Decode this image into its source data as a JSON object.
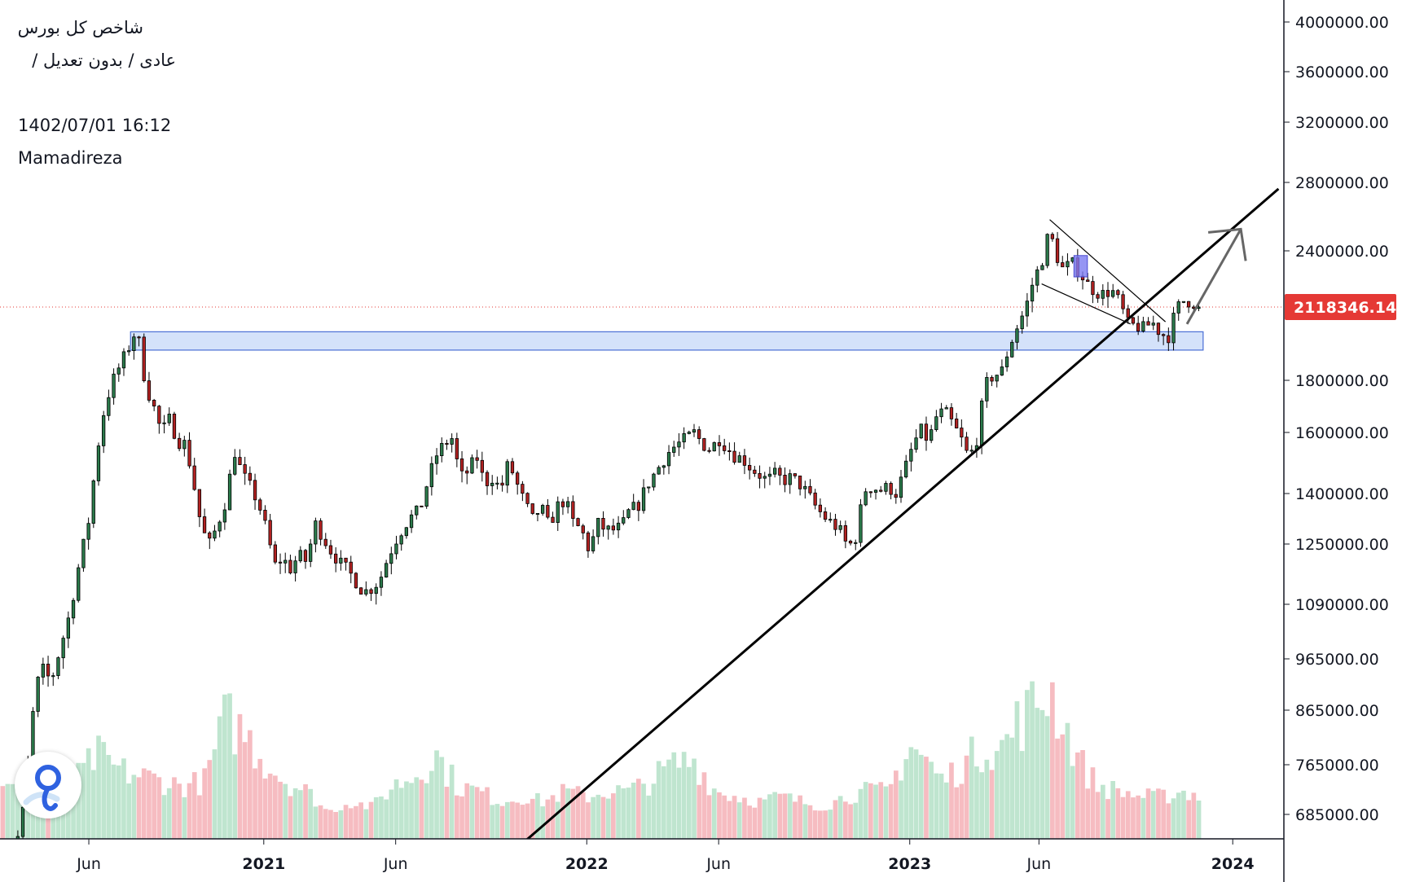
{
  "header": {
    "symbol_name": "شاخص کل بورس",
    "chart_mode": "عادی / بدون تعدیل /",
    "datetime": "1402/07/01 16:12",
    "author": "Mamadireza"
  },
  "colors": {
    "up": "#2b7a4b",
    "down": "#b22222",
    "vol_up": "#bfe5cf",
    "vol_down": "#f6bcc1",
    "zone_fill": "#c5d8f8",
    "zone_stroke": "#4a6fd6",
    "price_badge": "#e53935",
    "trend": "#000000"
  },
  "chart_data": {
    "type": "candlestick",
    "symbol": "شاخص کل بورس",
    "last_price": "2118346.14",
    "last_price_value": 2118346.14,
    "y_scale": "log",
    "ylim": [
      600000,
      4300000
    ],
    "y_ticks": [
      "4000000.00",
      "3600000.00",
      "3200000.00",
      "2800000.00",
      "2400000.00",
      "1800000.00",
      "1600000.00",
      "1400000.00",
      "1250000.00",
      "1090000.00",
      "965000.00",
      "865000.00",
      "765000.00",
      "685000.00"
    ],
    "y_tick_values": [
      4000000,
      3600000,
      3200000,
      2800000,
      2400000,
      1800000,
      1600000,
      1400000,
      1250000,
      1090000,
      965000,
      865000,
      765000,
      685000
    ],
    "x_ticks": [
      {
        "label": "Jun",
        "year": false,
        "t": 1.5
      },
      {
        "label": "2021",
        "year": true,
        "t": 8.0
      },
      {
        "label": "Jun",
        "year": false,
        "t": 12.9
      },
      {
        "label": "2022",
        "year": true,
        "t": 20.0
      },
      {
        "label": "Jun",
        "year": false,
        "t": 24.9
      },
      {
        "label": "2023",
        "year": true,
        "t": 32.0
      },
      {
        "label": "Jun",
        "year": false,
        "t": 36.8
      },
      {
        "label": "2024",
        "year": true,
        "t": 44.0
      }
    ],
    "t_range": [
      -1.8,
      45.9
    ],
    "anchors": [
      {
        "t": -1.7,
        "c": 560000
      },
      {
        "t": -1.3,
        "c": 620000
      },
      {
        "t": -0.9,
        "c": 700000
      },
      {
        "t": -0.6,
        "c": 850000
      },
      {
        "t": -0.3,
        "c": 950000
      },
      {
        "t": 0.1,
        "c": 920000
      },
      {
        "t": 0.4,
        "c": 980000
      },
      {
        "t": 0.8,
        "c": 1070000
      },
      {
        "t": 1.1,
        "c": 1180000
      },
      {
        "t": 1.5,
        "c": 1320000
      },
      {
        "t": 1.8,
        "c": 1530000
      },
      {
        "t": 2.1,
        "c": 1700000
      },
      {
        "t": 2.4,
        "c": 1800000
      },
      {
        "t": 2.7,
        "c": 1870000
      },
      {
        "t": 3.0,
        "c": 1940000
      },
      {
        "t": 3.2,
        "c": 2000000
      },
      {
        "t": 3.4,
        "c": 1950000
      },
      {
        "t": 3.6,
        "c": 1780000
      },
      {
        "t": 3.9,
        "c": 1700000
      },
      {
        "t": 4.2,
        "c": 1600000
      },
      {
        "t": 4.5,
        "c": 1650000
      },
      {
        "t": 4.8,
        "c": 1570000
      },
      {
        "t": 5.1,
        "c": 1560000
      },
      {
        "t": 5.4,
        "c": 1430000
      },
      {
        "t": 5.7,
        "c": 1290000
      },
      {
        "t": 6.0,
        "c": 1250000
      },
      {
        "t": 6.3,
        "c": 1310000
      },
      {
        "t": 6.6,
        "c": 1380000
      },
      {
        "t": 6.9,
        "c": 1540000
      },
      {
        "t": 7.2,
        "c": 1460000
      },
      {
        "t": 7.5,
        "c": 1420000
      },
      {
        "t": 7.8,
        "c": 1370000
      },
      {
        "t": 8.1,
        "c": 1290000
      },
      {
        "t": 8.4,
        "c": 1190000
      },
      {
        "t": 8.7,
        "c": 1210000
      },
      {
        "t": 9.0,
        "c": 1180000
      },
      {
        "t": 9.3,
        "c": 1220000
      },
      {
        "t": 9.6,
        "c": 1200000
      },
      {
        "t": 9.9,
        "c": 1310000
      },
      {
        "t": 10.2,
        "c": 1270000
      },
      {
        "t": 10.5,
        "c": 1230000
      },
      {
        "t": 10.8,
        "c": 1200000
      },
      {
        "t": 11.1,
        "c": 1180000
      },
      {
        "t": 11.4,
        "c": 1150000
      },
      {
        "t": 11.7,
        "c": 1120000
      },
      {
        "t": 12.0,
        "c": 1130000
      },
      {
        "t": 12.3,
        "c": 1150000
      },
      {
        "t": 12.6,
        "c": 1210000
      },
      {
        "t": 12.9,
        "c": 1260000
      },
      {
        "t": 13.2,
        "c": 1300000
      },
      {
        "t": 13.5,
        "c": 1330000
      },
      {
        "t": 13.8,
        "c": 1350000
      },
      {
        "t": 14.1,
        "c": 1440000
      },
      {
        "t": 14.4,
        "c": 1520000
      },
      {
        "t": 14.7,
        "c": 1560000
      },
      {
        "t": 15.0,
        "c": 1580000
      },
      {
        "t": 15.3,
        "c": 1450000
      },
      {
        "t": 15.6,
        "c": 1470000
      },
      {
        "t": 15.9,
        "c": 1520000
      },
      {
        "t": 16.2,
        "c": 1430000
      },
      {
        "t": 16.5,
        "c": 1450000
      },
      {
        "t": 16.8,
        "c": 1410000
      },
      {
        "t": 17.1,
        "c": 1500000
      },
      {
        "t": 17.4,
        "c": 1430000
      },
      {
        "t": 17.7,
        "c": 1370000
      },
      {
        "t": 18.0,
        "c": 1320000
      },
      {
        "t": 18.3,
        "c": 1360000
      },
      {
        "t": 18.6,
        "c": 1300000
      },
      {
        "t": 18.9,
        "c": 1360000
      },
      {
        "t": 19.2,
        "c": 1380000
      },
      {
        "t": 19.5,
        "c": 1310000
      },
      {
        "t": 19.8,
        "c": 1290000
      },
      {
        "t": 20.1,
        "c": 1230000
      },
      {
        "t": 20.4,
        "c": 1310000
      },
      {
        "t": 20.7,
        "c": 1290000
      },
      {
        "t": 21.0,
        "c": 1290000
      },
      {
        "t": 21.3,
        "c": 1300000
      },
      {
        "t": 21.6,
        "c": 1350000
      },
      {
        "t": 21.9,
        "c": 1360000
      },
      {
        "t": 22.2,
        "c": 1420000
      },
      {
        "t": 22.5,
        "c": 1460000
      },
      {
        "t": 22.8,
        "c": 1500000
      },
      {
        "t": 23.1,
        "c": 1540000
      },
      {
        "t": 23.4,
        "c": 1560000
      },
      {
        "t": 23.7,
        "c": 1580000
      },
      {
        "t": 24.0,
        "c": 1600000
      },
      {
        "t": 24.3,
        "c": 1560000
      },
      {
        "t": 24.6,
        "c": 1540000
      },
      {
        "t": 24.9,
        "c": 1580000
      },
      {
        "t": 25.2,
        "c": 1550000
      },
      {
        "t": 25.5,
        "c": 1520000
      },
      {
        "t": 25.8,
        "c": 1510000
      },
      {
        "t": 26.1,
        "c": 1480000
      },
      {
        "t": 26.4,
        "c": 1460000
      },
      {
        "t": 26.7,
        "c": 1440000
      },
      {
        "t": 27.0,
        "c": 1460000
      },
      {
        "t": 27.3,
        "c": 1440000
      },
      {
        "t": 27.6,
        "c": 1450000
      },
      {
        "t": 27.9,
        "c": 1430000
      },
      {
        "t": 28.2,
        "c": 1400000
      },
      {
        "t": 28.5,
        "c": 1360000
      },
      {
        "t": 28.8,
        "c": 1330000
      },
      {
        "t": 29.1,
        "c": 1310000
      },
      {
        "t": 29.4,
        "c": 1290000
      },
      {
        "t": 29.7,
        "c": 1240000
      },
      {
        "t": 30.0,
        "c": 1270000
      },
      {
        "t": 30.3,
        "c": 1410000
      },
      {
        "t": 30.6,
        "c": 1420000
      },
      {
        "t": 30.9,
        "c": 1410000
      },
      {
        "t": 31.2,
        "c": 1420000
      },
      {
        "t": 31.5,
        "c": 1400000
      },
      {
        "t": 31.8,
        "c": 1470000
      },
      {
        "t": 32.1,
        "c": 1550000
      },
      {
        "t": 32.4,
        "c": 1610000
      },
      {
        "t": 32.7,
        "c": 1570000
      },
      {
        "t": 33.0,
        "c": 1660000
      },
      {
        "t": 33.3,
        "c": 1680000
      },
      {
        "t": 33.6,
        "c": 1630000
      },
      {
        "t": 33.9,
        "c": 1580000
      },
      {
        "t": 34.2,
        "c": 1510000
      },
      {
        "t": 34.5,
        "c": 1580000
      },
      {
        "t": 34.8,
        "c": 1780000
      },
      {
        "t": 35.1,
        "c": 1820000
      },
      {
        "t": 35.4,
        "c": 1830000
      },
      {
        "t": 35.7,
        "c": 1940000
      },
      {
        "t": 36.0,
        "c": 2030000
      },
      {
        "t": 36.3,
        "c": 2110000
      },
      {
        "t": 36.6,
        "c": 2250000
      },
      {
        "t": 36.9,
        "c": 2340000
      },
      {
        "t": 37.2,
        "c": 2520000
      },
      {
        "t": 37.4,
        "c": 2390000
      },
      {
        "t": 37.7,
        "c": 2300000
      },
      {
        "t": 38.0,
        "c": 2340000
      },
      {
        "t": 38.3,
        "c": 2290000
      },
      {
        "t": 38.6,
        "c": 2230000
      },
      {
        "t": 38.9,
        "c": 2190000
      },
      {
        "t": 39.2,
        "c": 2180000
      },
      {
        "t": 39.5,
        "c": 2200000
      },
      {
        "t": 39.8,
        "c": 2140000
      },
      {
        "t": 40.1,
        "c": 2040000
      },
      {
        "t": 40.4,
        "c": 2030000
      },
      {
        "t": 40.7,
        "c": 2020000
      },
      {
        "t": 41.0,
        "c": 2050000
      },
      {
        "t": 41.3,
        "c": 2000000
      },
      {
        "t": 41.6,
        "c": 1980000
      },
      {
        "t": 41.9,
        "c": 2110000
      },
      {
        "t": 42.2,
        "c": 2150000
      },
      {
        "t": 42.5,
        "c": 2140000
      },
      {
        "t": 42.8,
        "c": 2118346
      }
    ],
    "volume_profile": [
      {
        "t": -1.8,
        "v": 0.3
      },
      {
        "t": -1.0,
        "v": 0.35
      },
      {
        "t": 0.0,
        "v": 0.55
      },
      {
        "t": 1.0,
        "v": 0.4
      },
      {
        "t": 1.8,
        "v": 0.65
      },
      {
        "t": 2.6,
        "v": 0.5
      },
      {
        "t": 3.4,
        "v": 0.45
      },
      {
        "t": 4.2,
        "v": 0.4
      },
      {
        "t": 5.0,
        "v": 0.35
      },
      {
        "t": 5.8,
        "v": 0.4
      },
      {
        "t": 6.6,
        "v": 1.0
      },
      {
        "t": 7.3,
        "v": 0.85
      },
      {
        "t": 8.0,
        "v": 0.6
      },
      {
        "t": 8.8,
        "v": 0.4
      },
      {
        "t": 9.6,
        "v": 0.3
      },
      {
        "t": 10.4,
        "v": 0.1
      },
      {
        "t": 11.2,
        "v": 0.2
      },
      {
        "t": 12.0,
        "v": 0.15
      },
      {
        "t": 12.8,
        "v": 0.35
      },
      {
        "t": 13.6,
        "v": 0.45
      },
      {
        "t": 14.4,
        "v": 0.65
      },
      {
        "t": 15.2,
        "v": 0.35
      },
      {
        "t": 16.0,
        "v": 0.3
      },
      {
        "t": 16.8,
        "v": 0.2
      },
      {
        "t": 17.6,
        "v": 0.25
      },
      {
        "t": 18.4,
        "v": 0.2
      },
      {
        "t": 19.2,
        "v": 0.3
      },
      {
        "t": 20.0,
        "v": 0.25
      },
      {
        "t": 20.8,
        "v": 0.3
      },
      {
        "t": 21.6,
        "v": 0.3
      },
      {
        "t": 22.4,
        "v": 0.4
      },
      {
        "t": 23.2,
        "v": 0.55
      },
      {
        "t": 24.0,
        "v": 0.6
      },
      {
        "t": 24.8,
        "v": 0.3
      },
      {
        "t": 25.6,
        "v": 0.25
      },
      {
        "t": 26.4,
        "v": 0.2
      },
      {
        "t": 27.2,
        "v": 0.25
      },
      {
        "t": 28.0,
        "v": 0.2
      },
      {
        "t": 28.8,
        "v": 0.15
      },
      {
        "t": 29.6,
        "v": 0.25
      },
      {
        "t": 30.4,
        "v": 0.3
      },
      {
        "t": 31.2,
        "v": 0.3
      },
      {
        "t": 32.0,
        "v": 0.75
      },
      {
        "t": 32.6,
        "v": 0.6
      },
      {
        "t": 33.2,
        "v": 0.4
      },
      {
        "t": 34.0,
        "v": 0.55
      },
      {
        "t": 34.8,
        "v": 0.75
      },
      {
        "t": 35.4,
        "v": 0.7
      },
      {
        "t": 36.0,
        "v": 0.95
      },
      {
        "t": 36.6,
        "v": 1.1
      },
      {
        "t": 37.2,
        "v": 1.3
      },
      {
        "t": 37.8,
        "v": 0.9
      },
      {
        "t": 38.4,
        "v": 0.55
      },
      {
        "t": 39.0,
        "v": 0.35
      },
      {
        "t": 39.8,
        "v": 0.3
      },
      {
        "t": 40.6,
        "v": 0.25
      },
      {
        "t": 41.4,
        "v": 0.25
      },
      {
        "t": 42.2,
        "v": 0.3
      },
      {
        "t": 42.8,
        "v": 0.25
      }
    ],
    "support_zone": {
      "t_start": 3.05,
      "t_end": 42.9,
      "price_low": 1925000,
      "price_high": 2005000
    },
    "trendline": {
      "t1": 16.3,
      "p1": 600000,
      "t2": 45.7,
      "p2": 2760000
    },
    "channel_upper": {
      "t1": 37.2,
      "p1": 2575000,
      "t2": 41.5,
      "p2": 2050000
    },
    "channel_lower": {
      "t1": 36.9,
      "p1": 2230000,
      "t2": 40.2,
      "p2": 2040000
    },
    "breakout_box": {
      "t_start": 38.1,
      "t_end": 38.6,
      "price_low": 2265000,
      "price_high": 2375000
    },
    "projection_arrow": {
      "t1": 42.3,
      "p1": 2040000,
      "t2": 44.3,
      "p2": 2520000
    },
    "price_line": 2118346.14
  }
}
